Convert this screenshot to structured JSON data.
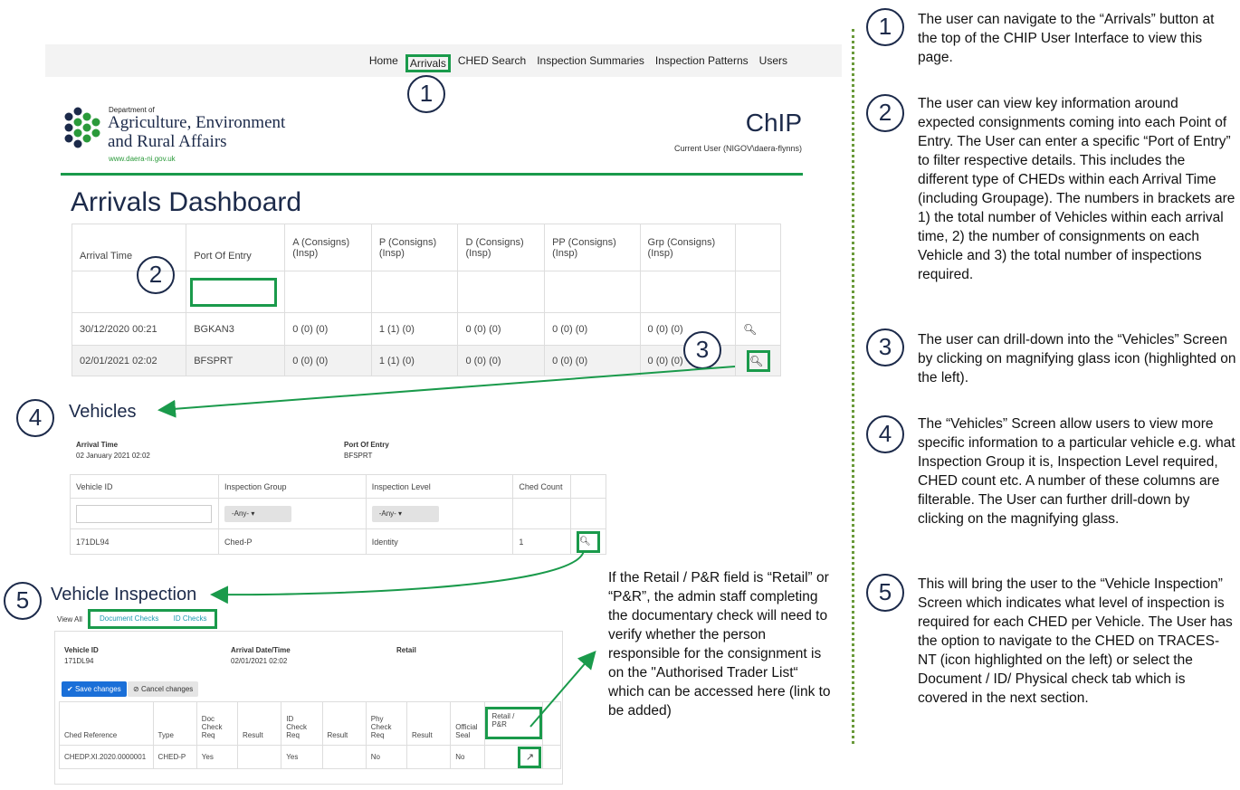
{
  "nav": {
    "items": [
      "Home",
      "Arrivals",
      "CHED Search",
      "Inspection Summaries",
      "Inspection Patterns",
      "Users"
    ]
  },
  "header": {
    "dept_small": "Department of",
    "dept_line1": "Agriculture, Environment",
    "dept_line2": "and Rural Affairs",
    "dept_url": "www.daera-ni.gov.uk",
    "app_title": "ChIP",
    "current_user": "Current User (NIGOV\\daera-flynns)"
  },
  "arrivals": {
    "title": "Arrivals Dashboard",
    "columns": [
      {
        "l1": "Arrival Time",
        "l2": ""
      },
      {
        "l1": "Port Of Entry",
        "l2": ""
      },
      {
        "l1": "A (Consigns)",
        "l2": "(Insp)"
      },
      {
        "l1": "P (Consigns)",
        "l2": "(Insp)"
      },
      {
        "l1": "D (Consigns)",
        "l2": "(Insp)"
      },
      {
        "l1": "PP (Consigns)",
        "l2": "(Insp)"
      },
      {
        "l1": "Grp (Consigns)",
        "l2": "(Insp)"
      }
    ],
    "rows": [
      [
        "30/12/2020 00:21",
        "BGKAN3",
        "0 (0) (0)",
        "1 (1) (0)",
        "0 (0) (0)",
        "0 (0) (0)",
        "0 (0) (0)"
      ],
      [
        "02/01/2021 02:02",
        "BFSPRT",
        "0 (0) (0)",
        "1 (1) (0)",
        "0 (0) (0)",
        "0 (0) (0)",
        "0 (0) (0)"
      ]
    ]
  },
  "vehicles": {
    "title": "Vehicles",
    "arrival_label": "Arrival Time",
    "arrival_value": "02 January 2021 02:02",
    "port_label": "Port Of Entry",
    "port_value": "BFSPRT",
    "columns": [
      "Vehicle ID",
      "Inspection Group",
      "Inspection Level",
      "Ched Count"
    ],
    "filter_any": "-Any-",
    "row": [
      "171DL94",
      "Ched-P",
      "Identity",
      "1"
    ]
  },
  "vehicle_inspection": {
    "title": "Vehicle Inspection",
    "tabs": [
      "View All",
      "Document Checks",
      "ID Checks"
    ],
    "vehicle_id_label": "Vehicle ID",
    "vehicle_id": "171DL94",
    "arrival_label": "Arrival Date/Time",
    "arrival_value": "02/01/2021 02:02",
    "retail_label": "Retail",
    "save": "Save changes",
    "cancel": "Cancel changes",
    "columns": [
      {
        "l1": "",
        "l2": "",
        "l3": "Ched Reference"
      },
      {
        "l1": "",
        "l2": "",
        "l3": "Type"
      },
      {
        "l1": "Doc",
        "l2": "Check",
        "l3": "Req"
      },
      {
        "l1": "",
        "l2": "",
        "l3": "Result"
      },
      {
        "l1": "ID",
        "l2": "Check",
        "l3": "Req"
      },
      {
        "l1": "",
        "l2": "",
        "l3": "Result"
      },
      {
        "l1": "Phy",
        "l2": "Check",
        "l3": "Req"
      },
      {
        "l1": "",
        "l2": "",
        "l3": "Result"
      },
      {
        "l1": "",
        "l2": "Official",
        "l3": "Seal"
      },
      {
        "l1": "",
        "l2": "Retail /",
        "l3": "P&R"
      }
    ],
    "row": [
      "CHEDP.XI.2020.0000001",
      "CHED-P",
      "Yes",
      "",
      "Yes",
      "",
      "No",
      "",
      "No",
      ""
    ]
  },
  "callouts": [
    "1",
    "2",
    "3",
    "4",
    "5"
  ],
  "mid_note": "If the Retail / P&R field is “Retail” or “P&R”, the admin staff completing the documentary check will need to verify whether the person responsible for the consignment is on the \"Authorised Trader List“ which can be accessed here (link to be added)",
  "descriptions": [
    "The user can navigate to the “Arrivals” button at the top of the CHIP User Interface to view this page.",
    "The user can view key information around expected consignments coming into each Point of Entry. The User can enter a specific “Port of Entry” to filter respective details. This includes the different type of CHEDs within each Arrival Time (including Groupage). The numbers in brackets are 1) the total number of Vehicles within each arrival time, 2) the number of consignments on each Vehicle and 3) the total number of inspections required.",
    "The user can drill-down into the “Vehicles” Screen by clicking on magnifying glass icon (highlighted on the left).",
    "The “Vehicles” Screen allow users to view more specific information to a particular vehicle e.g. what Inspection Group it is, Inspection Level required, CHED count etc. A number of these columns are filterable. The User can further drill-down by clicking on the magnifying glass.",
    "This will bring the user to the “Vehicle Inspection” Screen which indicates what level of inspection is required for each CHED per Vehicle. The User has the option to navigate to the CHED on TRACES-NT (icon highlighted on the left) or select the Document / ID/ Physical check tab which is covered in the next section."
  ],
  "colors": {
    "accent_green": "#1a9a4b",
    "navy": "#1c2a4a",
    "blue": "#1a6fd8"
  }
}
